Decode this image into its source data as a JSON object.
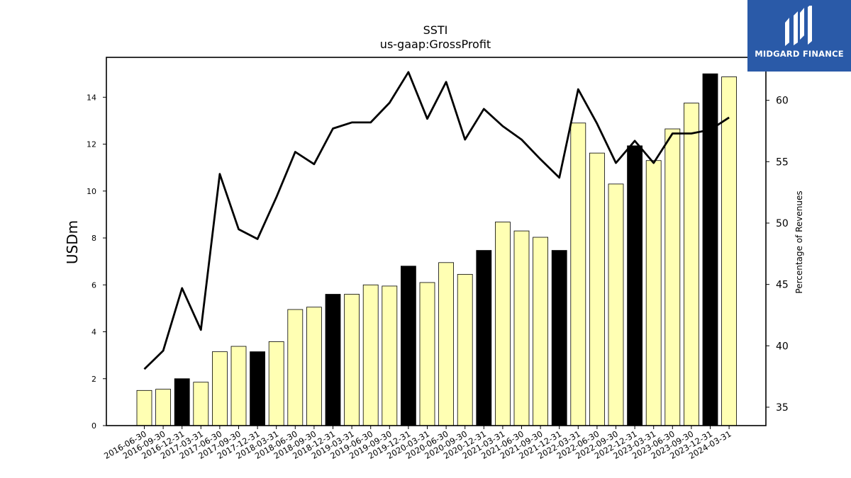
{
  "brand": {
    "name": "MIDGARD FINANCE",
    "icon": "midgard-logo-icon",
    "background": "#2a5aa8"
  },
  "chart_data": {
    "type": "bar",
    "title": "SSTI",
    "subtitle": "us-gaap:GrossProfit",
    "ylabel": "USDm",
    "y2label": "Percentage of Revenues",
    "ylim": [
      0,
      15.7
    ],
    "y2lim": [
      33.5,
      63.5
    ],
    "yticks": [
      0,
      2,
      4,
      6,
      8,
      10,
      12,
      14
    ],
    "y2ticks": [
      35,
      40,
      45,
      50,
      55,
      60
    ],
    "categories": [
      "2016-06-30",
      "2016-09-30",
      "2016-12-31",
      "2017-03-31",
      "2017-06-30",
      "2017-09-30",
      "2017-12-31",
      "2018-03-31",
      "2018-06-30",
      "2018-09-30",
      "2018-12-31",
      "2019-03-31",
      "2019-06-30",
      "2019-09-30",
      "2019-12-31",
      "2020-03-31",
      "2020-06-30",
      "2020-09-30",
      "2020-12-31",
      "2021-03-31",
      "2021-06-30",
      "2021-09-30",
      "2021-12-31",
      "2022-03-31",
      "2022-06-30",
      "2022-09-30",
      "2022-12-31",
      "2023-03-31",
      "2023-06-30",
      "2023-09-30",
      "2023-12-31",
      "2024-03-31"
    ],
    "bar_values": [
      1.5,
      1.55,
      2.0,
      1.85,
      3.15,
      3.38,
      3.15,
      3.58,
      4.95,
      5.05,
      5.6,
      5.6,
      6.0,
      5.95,
      6.8,
      6.1,
      6.95,
      6.45,
      7.47,
      8.68,
      8.3,
      8.03,
      7.47,
      12.9,
      11.62,
      10.3,
      11.93,
      11.3,
      12.65,
      13.75,
      15.0,
      14.87
    ],
    "bar_highlight": [
      false,
      false,
      true,
      false,
      false,
      false,
      true,
      false,
      false,
      false,
      true,
      false,
      false,
      false,
      true,
      false,
      false,
      false,
      true,
      false,
      false,
      false,
      true,
      false,
      false,
      false,
      true,
      false,
      false,
      false,
      true,
      false
    ],
    "line_values": [
      38.1,
      39.6,
      44.7,
      41.3,
      54.0,
      49.5,
      48.7,
      52.1,
      55.8,
      54.8,
      57.7,
      58.2,
      58.2,
      59.8,
      62.3,
      58.5,
      61.5,
      56.8,
      59.3,
      57.9,
      56.8,
      55.2,
      53.7,
      60.9,
      58.1,
      54.9,
      56.7,
      54.9,
      57.3,
      57.3,
      57.6,
      58.6
    ],
    "colors": {
      "bar": "#ffffb3",
      "bar_highlight": "#000000",
      "bar_edge": "#000000",
      "line": "#000000"
    },
    "grid": false,
    "legend": "none"
  }
}
